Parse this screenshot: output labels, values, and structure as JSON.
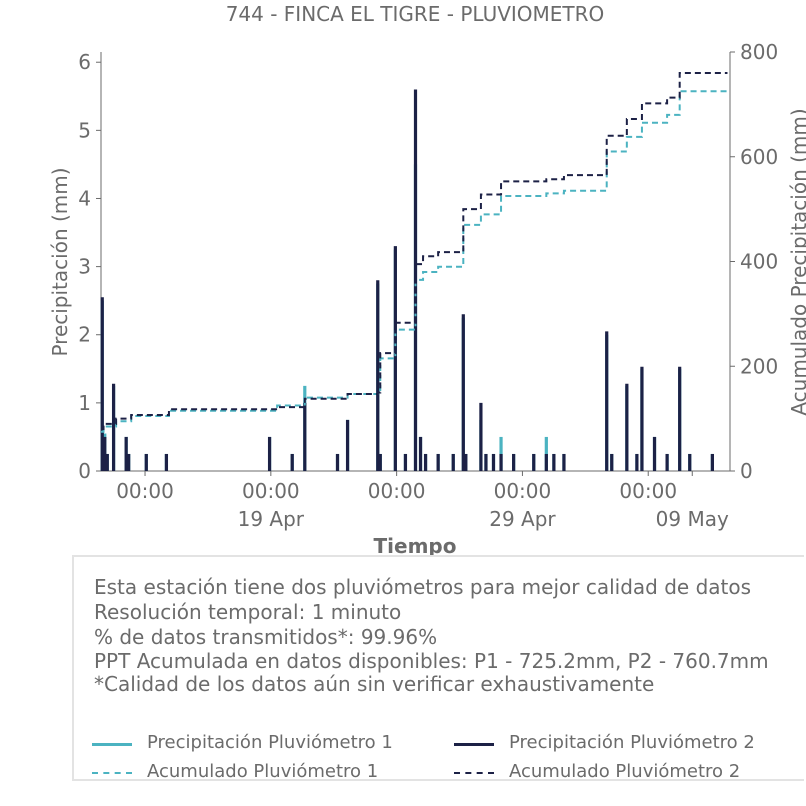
{
  "chart_data": {
    "type": "line",
    "title": "744 - FINCA EL TIGRE - PLUVIOMETRO",
    "xlabel": "Tiempo",
    "ylabel": "Precipitación (mm)",
    "y2label": "Acumulado Precipitación (mm)",
    "ylim": [
      0,
      6.15
    ],
    "y2lim": [
      0,
      800
    ],
    "yticks": [
      "0",
      "1",
      "2",
      "3",
      "4",
      "5",
      "6"
    ],
    "y2ticks": [
      "0",
      "200",
      "400",
      "600",
      "800"
    ],
    "xlim": [
      0,
      25
    ],
    "xticks_major": [
      {
        "x": 1.75,
        "time": "00:00",
        "date": ""
      },
      {
        "x": 6.75,
        "time": "00:00",
        "date": "19 Apr"
      },
      {
        "x": 11.75,
        "time": "00:00",
        "date": ""
      },
      {
        "x": 16.75,
        "time": "00:00",
        "date": "29 Apr"
      },
      {
        "x": 21.75,
        "time": "00:00",
        "date": ""
      },
      {
        "x": 23.5,
        "time": "",
        "date": "09 May"
      }
    ],
    "grid": false,
    "series": [
      {
        "name": "Precipitación Pluviómetro 1",
        "color": "#4bb3c1",
        "style": "solid",
        "spikes": [
          [
            0.05,
            2.5
          ],
          [
            0.15,
            0.55
          ],
          [
            0.25,
            0.25
          ],
          [
            0.5,
            1.25
          ],
          [
            1.0,
            0.5
          ],
          [
            1.1,
            0.25
          ],
          [
            1.8,
            0.25
          ],
          [
            2.6,
            0.25
          ],
          [
            6.7,
            0.5
          ],
          [
            7.6,
            0.25
          ],
          [
            8.1,
            1.25
          ],
          [
            9.4,
            0.25
          ],
          [
            9.8,
            0.75
          ],
          [
            11.0,
            2.75
          ],
          [
            11.1,
            0.25
          ],
          [
            11.7,
            3.25
          ],
          [
            12.1,
            0.25
          ],
          [
            12.5,
            4.5
          ],
          [
            12.7,
            0.5
          ],
          [
            12.9,
            0.25
          ],
          [
            13.4,
            0.25
          ],
          [
            14.0,
            0.25
          ],
          [
            14.4,
            2.25
          ],
          [
            14.5,
            0.25
          ],
          [
            15.1,
            0.75
          ],
          [
            15.3,
            0.25
          ],
          [
            15.6,
            0.25
          ],
          [
            15.9,
            0.5
          ],
          [
            16.4,
            0.25
          ],
          [
            17.2,
            0.25
          ],
          [
            17.7,
            0.5
          ],
          [
            18.0,
            0.25
          ],
          [
            18.4,
            0.25
          ],
          [
            20.1,
            2.0
          ],
          [
            20.3,
            0.25
          ],
          [
            20.9,
            1.25
          ],
          [
            21.3,
            0.25
          ],
          [
            21.5,
            1.5
          ],
          [
            22.0,
            0.5
          ],
          [
            22.5,
            0.25
          ],
          [
            23.0,
            1.5
          ],
          [
            23.4,
            0.25
          ],
          [
            24.3,
            0.25
          ]
        ]
      },
      {
        "name": "Precipitación Pluviómetro 2",
        "color": "#1c2146",
        "style": "solid",
        "spikes": [
          [
            0.05,
            2.55
          ],
          [
            0.15,
            0.5
          ],
          [
            0.25,
            0.25
          ],
          [
            0.5,
            1.28
          ],
          [
            1.0,
            0.5
          ],
          [
            1.1,
            0.25
          ],
          [
            1.8,
            0.25
          ],
          [
            2.6,
            0.25
          ],
          [
            6.7,
            0.5
          ],
          [
            7.6,
            0.25
          ],
          [
            8.1,
            1.0
          ],
          [
            9.4,
            0.25
          ],
          [
            9.8,
            0.75
          ],
          [
            11.0,
            2.8
          ],
          [
            11.1,
            0.25
          ],
          [
            11.7,
            3.3
          ],
          [
            12.1,
            0.25
          ],
          [
            12.5,
            5.6
          ],
          [
            12.7,
            0.5
          ],
          [
            12.9,
            0.25
          ],
          [
            13.4,
            0.25
          ],
          [
            14.0,
            0.25
          ],
          [
            14.4,
            2.3
          ],
          [
            14.5,
            0.25
          ],
          [
            15.1,
            1.0
          ],
          [
            15.3,
            0.25
          ],
          [
            15.6,
            0.25
          ],
          [
            15.9,
            0.25
          ],
          [
            16.4,
            0.25
          ],
          [
            17.2,
            0.25
          ],
          [
            17.7,
            0.25
          ],
          [
            18.0,
            0.25
          ],
          [
            18.4,
            0.25
          ],
          [
            20.1,
            2.05
          ],
          [
            20.3,
            0.25
          ],
          [
            20.9,
            1.28
          ],
          [
            21.3,
            0.25
          ],
          [
            21.5,
            1.53
          ],
          [
            22.0,
            0.5
          ],
          [
            22.5,
            0.25
          ],
          [
            23.0,
            1.53
          ],
          [
            23.4,
            0.25
          ],
          [
            24.3,
            0.25
          ]
        ]
      },
      {
        "name": "Acumulado Pluviómetro 1",
        "color": "#4bb3c1",
        "style": "dashed",
        "steps": [
          [
            0,
            75
          ],
          [
            0.1,
            85
          ],
          [
            0.6,
            95
          ],
          [
            1.2,
            105
          ],
          [
            2.7,
            115
          ],
          [
            6.7,
            115
          ],
          [
            7.0,
            125
          ],
          [
            8.1,
            140
          ],
          [
            9.8,
            147
          ],
          [
            11.0,
            150
          ],
          [
            11.1,
            215
          ],
          [
            11.7,
            270
          ],
          [
            12.5,
            365
          ],
          [
            12.8,
            380
          ],
          [
            13.4,
            390
          ],
          [
            14.4,
            470
          ],
          [
            15.1,
            490
          ],
          [
            15.9,
            525
          ],
          [
            17.7,
            530
          ],
          [
            18.4,
            535
          ],
          [
            20.1,
            610
          ],
          [
            20.9,
            638
          ],
          [
            21.5,
            665
          ],
          [
            22.5,
            680
          ],
          [
            23.0,
            725
          ],
          [
            24.9,
            725
          ]
        ]
      },
      {
        "name": "Acumulado Pluviómetro 2",
        "color": "#1c2146",
        "style": "dashed",
        "steps": [
          [
            0,
            80
          ],
          [
            0.1,
            90
          ],
          [
            0.6,
            100
          ],
          [
            1.2,
            107
          ],
          [
            2.7,
            118
          ],
          [
            6.7,
            118
          ],
          [
            7.0,
            122
          ],
          [
            8.1,
            138
          ],
          [
            9.8,
            147
          ],
          [
            11.0,
            150
          ],
          [
            11.1,
            225
          ],
          [
            11.7,
            283
          ],
          [
            12.5,
            395
          ],
          [
            12.8,
            410
          ],
          [
            13.4,
            418
          ],
          [
            14.4,
            500
          ],
          [
            15.1,
            528
          ],
          [
            15.9,
            553
          ],
          [
            17.7,
            557
          ],
          [
            18.4,
            565
          ],
          [
            20.1,
            640
          ],
          [
            20.9,
            672
          ],
          [
            21.5,
            702
          ],
          [
            22.5,
            713
          ],
          [
            23.0,
            760
          ],
          [
            24.9,
            760
          ]
        ]
      }
    ]
  },
  "info": {
    "lines": [
      "Esta estación tiene dos pluviómetros para mejor calidad de datos",
      "Resolución temporal: 1 minuto",
      "% de datos transmitidos*: 99.96%",
      "PPT Acumulada en datos disponibles: P1 - 725.2mm, P2 - 760.7mm",
      "*Calidad de los datos aún sin verificar exhaustivamente"
    ]
  },
  "legend": {
    "items": [
      {
        "label": "Precipitación Pluviómetro 1",
        "color": "#4bb3c1",
        "style": "solid"
      },
      {
        "label": "Precipitación Pluviómetro 2",
        "color": "#1c2146",
        "style": "solid"
      },
      {
        "label": "Acumulado Pluviómetro 1",
        "color": "#4bb3c1",
        "style": "dashed"
      },
      {
        "label": "Acumulado Pluviómetro 2",
        "color": "#1c2146",
        "style": "dashed"
      }
    ]
  }
}
